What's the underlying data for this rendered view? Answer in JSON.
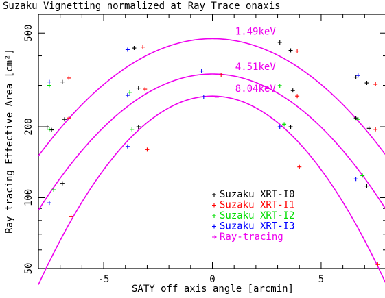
{
  "chart_data": {
    "type": "scatter",
    "title": "Suzaku Vignetting normalized at Ray Trace onaxis",
    "xlabel": "SATY off axis angle [arcmin]",
    "ylabel": "Ray tracing Effective Area [cm²]",
    "xlim": [
      -8,
      8
    ],
    "ylim": [
      50,
      600
    ],
    "yscale": "log",
    "x_ticks": [
      "-5",
      "0",
      "5"
    ],
    "y_ticks": [
      "50",
      "100",
      "200",
      "500"
    ],
    "legend_position": "bottom-center",
    "grid": false,
    "series": [
      {
        "name": "Suzaku XRT-I0",
        "color": "#000000",
        "marker": "+",
        "points": [
          [
            -6.9,
            310
          ],
          [
            -3.6,
            432
          ],
          [
            3.1,
            456
          ],
          [
            3.6,
            422
          ],
          [
            -7.6,
            200
          ],
          [
            -3.4,
            292
          ],
          [
            3.7,
            285
          ],
          [
            6.6,
            325
          ],
          [
            7.1,
            307
          ],
          [
            -6.8,
            215
          ],
          [
            -3.4,
            200
          ],
          [
            3.6,
            200
          ],
          [
            6.6,
            218
          ],
          [
            7.2,
            197
          ],
          [
            -7.4,
            194
          ],
          [
            -6.9,
            115
          ],
          [
            7.1,
            112
          ]
        ]
      },
      {
        "name": "Suzaku XRT-I1",
        "color": "#ff0000",
        "marker": "+",
        "points": [
          [
            -6.6,
            322
          ],
          [
            -3.2,
            436
          ],
          [
            3.9,
            419
          ],
          [
            -3.1,
            289
          ],
          [
            3.9,
            270
          ],
          [
            7.5,
            303
          ],
          [
            -6.6,
            218
          ],
          [
            -3.0,
            160
          ],
          [
            7.5,
            195
          ],
          [
            4.0,
            135
          ],
          [
            -6.5,
            83
          ],
          [
            7.6,
            52
          ],
          [
            0.4,
            332
          ]
        ]
      },
      {
        "name": "Suzaku XRT-I2",
        "color": "#00dd00",
        "marker": "+",
        "points": [
          [
            -7.5,
            300
          ],
          [
            -3.8,
            280
          ],
          [
            3.1,
            299
          ],
          [
            -7.5,
            195
          ],
          [
            -3.7,
            195
          ],
          [
            3.3,
            205
          ],
          [
            -7.3,
            108
          ],
          [
            6.7,
            215
          ],
          [
            6.9,
            124
          ]
        ]
      },
      {
        "name": "Suzaku XRT-I3",
        "color": "#0000ff",
        "marker": "+",
        "points": [
          [
            -7.5,
            310
          ],
          [
            -3.9,
            425
          ],
          [
            -0.5,
            345
          ],
          [
            6.7,
            330
          ],
          [
            -3.9,
            272
          ],
          [
            3.1,
            200
          ],
          [
            -3.9,
            165
          ],
          [
            6.6,
            120
          ],
          [
            -7.5,
            95
          ],
          [
            -0.4,
            268
          ]
        ]
      },
      {
        "name": "Ray-tracing",
        "color": "#ee00ee",
        "marker": "curve",
        "curves": [
          {
            "label": "1.49keV",
            "peak": 473,
            "a": 0.0179,
            "points": [
              [
                -0.1,
                476
              ],
              [
                0.3,
                476
              ]
            ]
          },
          {
            "label": "4.51keV",
            "peak": 335,
            "a": 0.0208,
            "points": [
              [
                0.2,
                335
              ],
              [
                0.3,
                335
              ]
            ]
          },
          {
            "label": "8.04keV",
            "peak": 270,
            "a": 0.0288,
            "points": [
              [
                0.1,
                268
              ],
              [
                0.2,
                267
              ]
            ]
          }
        ]
      }
    ]
  }
}
